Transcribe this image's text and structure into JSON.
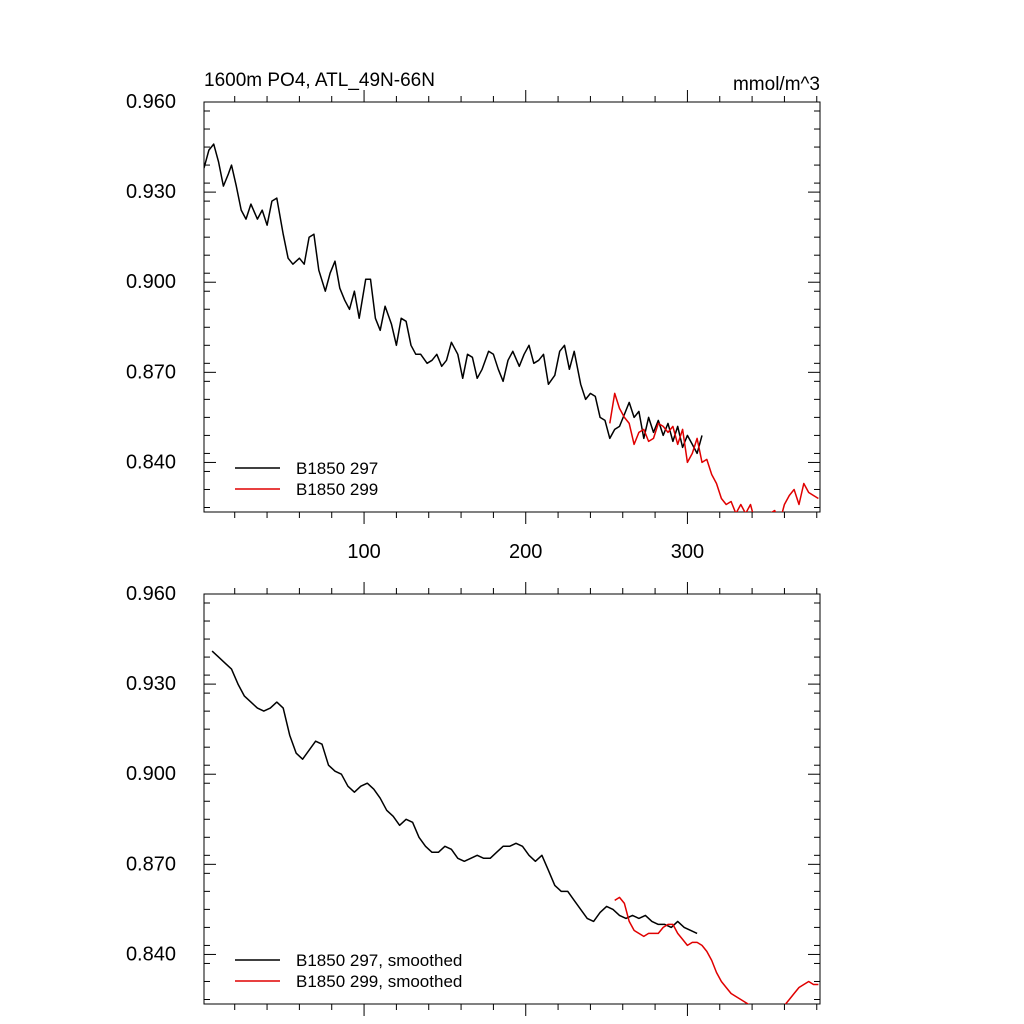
{
  "chart_data": [
    {
      "type": "line",
      "title": "1600m PO4, ATL_49N-66N",
      "units_label": "mmol/m^3",
      "xlabel": "",
      "ylabel": "",
      "xlim": [
        1,
        382
      ],
      "ylim": [
        0.8235,
        0.96
      ],
      "x_ticks": [
        100,
        200,
        300
      ],
      "x_tick_labels": [
        "100",
        "200",
        "300"
      ],
      "y_ticks": [
        0.96,
        0.93,
        0.9,
        0.87,
        0.84
      ],
      "y_tick_labels": [
        "0.960",
        "0.930",
        "0.900",
        "0.870",
        "0.840"
      ],
      "grid": false,
      "legend_position": "bottom-left",
      "series": [
        {
          "name": "B1850 297",
          "color": "#000000",
          "x": [
            1,
            4,
            7,
            10,
            13,
            16,
            18,
            21,
            24,
            27,
            30,
            34,
            37,
            40,
            43,
            46,
            50,
            53,
            56,
            60,
            63,
            66,
            69,
            72,
            76,
            79,
            82,
            85,
            88,
            91,
            94,
            97,
            101,
            104,
            107,
            110,
            113,
            117,
            120,
            123,
            126,
            129,
            132,
            135,
            139,
            142,
            145,
            148,
            151,
            154,
            158,
            161,
            164,
            167,
            170,
            173,
            177,
            180,
            183,
            186,
            189,
            192,
            196,
            199,
            202,
            205,
            208,
            211,
            214,
            218,
            221,
            224,
            227,
            230,
            234,
            237,
            240,
            243,
            246,
            249,
            252,
            255,
            258,
            261,
            264,
            267,
            270,
            273,
            276,
            279,
            282,
            285,
            288,
            291,
            294,
            297,
            300,
            303,
            306,
            309
          ],
          "y": [
            0.938,
            0.944,
            0.946,
            0.94,
            0.932,
            0.936,
            0.939,
            0.932,
            0.924,
            0.921,
            0.926,
            0.921,
            0.924,
            0.919,
            0.927,
            0.928,
            0.916,
            0.908,
            0.906,
            0.908,
            0.906,
            0.915,
            0.916,
            0.904,
            0.897,
            0.903,
            0.907,
            0.898,
            0.894,
            0.891,
            0.897,
            0.888,
            0.901,
            0.901,
            0.888,
            0.884,
            0.892,
            0.886,
            0.879,
            0.888,
            0.887,
            0.879,
            0.876,
            0.876,
            0.873,
            0.874,
            0.876,
            0.872,
            0.874,
            0.88,
            0.876,
            0.868,
            0.876,
            0.875,
            0.868,
            0.871,
            0.877,
            0.876,
            0.871,
            0.867,
            0.874,
            0.877,
            0.872,
            0.876,
            0.879,
            0.873,
            0.874,
            0.876,
            0.866,
            0.869,
            0.877,
            0.879,
            0.871,
            0.877,
            0.866,
            0.861,
            0.863,
            0.862,
            0.855,
            0.854,
            0.848,
            0.851,
            0.852,
            0.856,
            0.86,
            0.855,
            0.857,
            0.848,
            0.855,
            0.85,
            0.854,
            0.849,
            0.853,
            0.847,
            0.852,
            0.845,
            0.849,
            0.846,
            0.843,
            0.849
          ],
          "line_style": "solid"
        },
        {
          "name": "B1850 299",
          "color": "#e00000",
          "x": [
            252,
            255,
            258,
            261,
            264,
            267,
            270,
            273,
            276,
            279,
            282,
            285,
            288,
            291,
            294,
            297,
            300,
            303,
            306,
            309,
            312,
            315,
            318,
            321,
            324,
            327,
            330,
            333,
            336,
            339,
            342,
            345,
            348,
            351,
            354,
            357,
            360,
            363,
            366,
            369,
            372,
            375,
            378,
            381
          ],
          "y": [
            0.853,
            0.863,
            0.858,
            0.855,
            0.853,
            0.846,
            0.85,
            0.851,
            0.847,
            0.848,
            0.853,
            0.852,
            0.85,
            0.852,
            0.846,
            0.851,
            0.84,
            0.843,
            0.848,
            0.84,
            0.841,
            0.836,
            0.833,
            0.828,
            0.826,
            0.827,
            0.823,
            0.826,
            0.823,
            0.826,
            0.82,
            0.822,
            0.819,
            0.823,
            0.824,
            0.82,
            0.826,
            0.829,
            0.831,
            0.826,
            0.833,
            0.83,
            0.829,
            0.828
          ],
          "line_style": "solid"
        }
      ]
    },
    {
      "type": "line",
      "title": "",
      "xlabel": "",
      "ylabel": "",
      "xlim": [
        1,
        382
      ],
      "ylim": [
        0.8235,
        0.96
      ],
      "x_ticks": [
        100,
        200,
        300
      ],
      "x_tick_labels": [],
      "y_ticks": [
        0.96,
        0.93,
        0.9,
        0.87,
        0.84
      ],
      "y_tick_labels": [
        "0.960",
        "0.930",
        "0.900",
        "0.870",
        "0.840"
      ],
      "grid": false,
      "legend_position": "bottom-left",
      "series": [
        {
          "name": "B1850 297, smoothed",
          "color": "#000000",
          "x": [
            6,
            10,
            14,
            18,
            22,
            26,
            30,
            34,
            38,
            42,
            46,
            50,
            54,
            58,
            62,
            66,
            70,
            74,
            78,
            82,
            86,
            90,
            94,
            98,
            102,
            106,
            110,
            114,
            118,
            122,
            126,
            130,
            134,
            138,
            142,
            146,
            150,
            154,
            158,
            162,
            166,
            170,
            174,
            178,
            182,
            186,
            190,
            194,
            198,
            202,
            206,
            210,
            214,
            218,
            222,
            226,
            230,
            234,
            238,
            242,
            246,
            250,
            254,
            258,
            262,
            266,
            270,
            274,
            278,
            282,
            286,
            290,
            294,
            298,
            302,
            306
          ],
          "y": [
            0.941,
            0.939,
            0.937,
            0.935,
            0.93,
            0.926,
            0.924,
            0.922,
            0.921,
            0.922,
            0.924,
            0.922,
            0.913,
            0.907,
            0.905,
            0.908,
            0.911,
            0.91,
            0.903,
            0.901,
            0.9,
            0.896,
            0.894,
            0.896,
            0.897,
            0.895,
            0.892,
            0.888,
            0.886,
            0.883,
            0.885,
            0.884,
            0.879,
            0.876,
            0.874,
            0.874,
            0.876,
            0.875,
            0.872,
            0.871,
            0.872,
            0.873,
            0.872,
            0.872,
            0.874,
            0.876,
            0.876,
            0.877,
            0.876,
            0.873,
            0.871,
            0.873,
            0.868,
            0.863,
            0.861,
            0.861,
            0.858,
            0.855,
            0.852,
            0.851,
            0.854,
            0.856,
            0.855,
            0.853,
            0.852,
            0.853,
            0.852,
            0.853,
            0.851,
            0.85,
            0.85,
            0.849,
            0.851,
            0.849,
            0.848,
            0.847
          ],
          "line_style": "solid"
        },
        {
          "name": "B1850 299, smoothed",
          "color": "#e00000",
          "x": [
            255,
            258,
            261,
            264,
            267,
            270,
            273,
            276,
            279,
            282,
            285,
            288,
            291,
            294,
            297,
            300,
            303,
            306,
            309,
            312,
            315,
            318,
            321,
            324,
            327,
            330,
            333,
            336,
            339,
            342,
            345,
            348,
            351,
            354,
            357,
            360,
            363,
            366,
            369,
            372,
            375,
            378,
            381
          ],
          "y": [
            0.858,
            0.859,
            0.857,
            0.851,
            0.848,
            0.847,
            0.846,
            0.847,
            0.847,
            0.847,
            0.849,
            0.85,
            0.85,
            0.847,
            0.845,
            0.843,
            0.844,
            0.844,
            0.843,
            0.841,
            0.838,
            0.834,
            0.831,
            0.829,
            0.827,
            0.826,
            0.825,
            0.824,
            0.823,
            0.822,
            0.821,
            0.82,
            0.821,
            0.822,
            0.822,
            0.823,
            0.825,
            0.827,
            0.829,
            0.83,
            0.831,
            0.83,
            0.83
          ],
          "line_style": "solid"
        }
      ]
    }
  ]
}
